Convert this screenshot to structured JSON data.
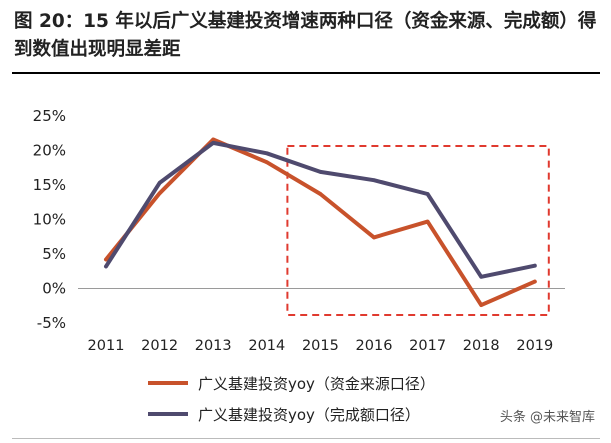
{
  "header": {
    "title": "图 20：15 年以后广义基建投资增速两种口径（资金来源、完成额）得到数值出现明显差距"
  },
  "watermark": "头条 @未来智库",
  "chart_data": {
    "type": "line",
    "title": "",
    "xlabel": "",
    "ylabel": "",
    "categories": [
      "2011",
      "2012",
      "2013",
      "2014",
      "2015",
      "2016",
      "2017",
      "2018",
      "2019"
    ],
    "ylim": [
      -5,
      25
    ],
    "yticks": [
      -5,
      0,
      5,
      10,
      15,
      20,
      25
    ],
    "ytick_labels": [
      "-5%",
      "0%",
      "5%",
      "10%",
      "15%",
      "20%",
      "25%"
    ],
    "grid": false,
    "legend_position": "bottom",
    "series": [
      {
        "name": "广义基建投资yoy（资金来源口径）",
        "color": "#c8522b",
        "values": [
          4.2,
          13.8,
          21.6,
          18.3,
          13.7,
          7.4,
          9.7,
          -2.4,
          1.0
        ]
      },
      {
        "name": "广义基建投资yoy（完成额口径）",
        "color": "#4f4a6e",
        "values": [
          3.2,
          15.3,
          21.1,
          19.6,
          16.9,
          15.7,
          13.7,
          1.7,
          3.3
        ]
      }
    ],
    "annotation": {
      "type": "dashed-box",
      "color": "#e03a2f",
      "x_range": [
        "2015",
        "2019"
      ]
    }
  }
}
